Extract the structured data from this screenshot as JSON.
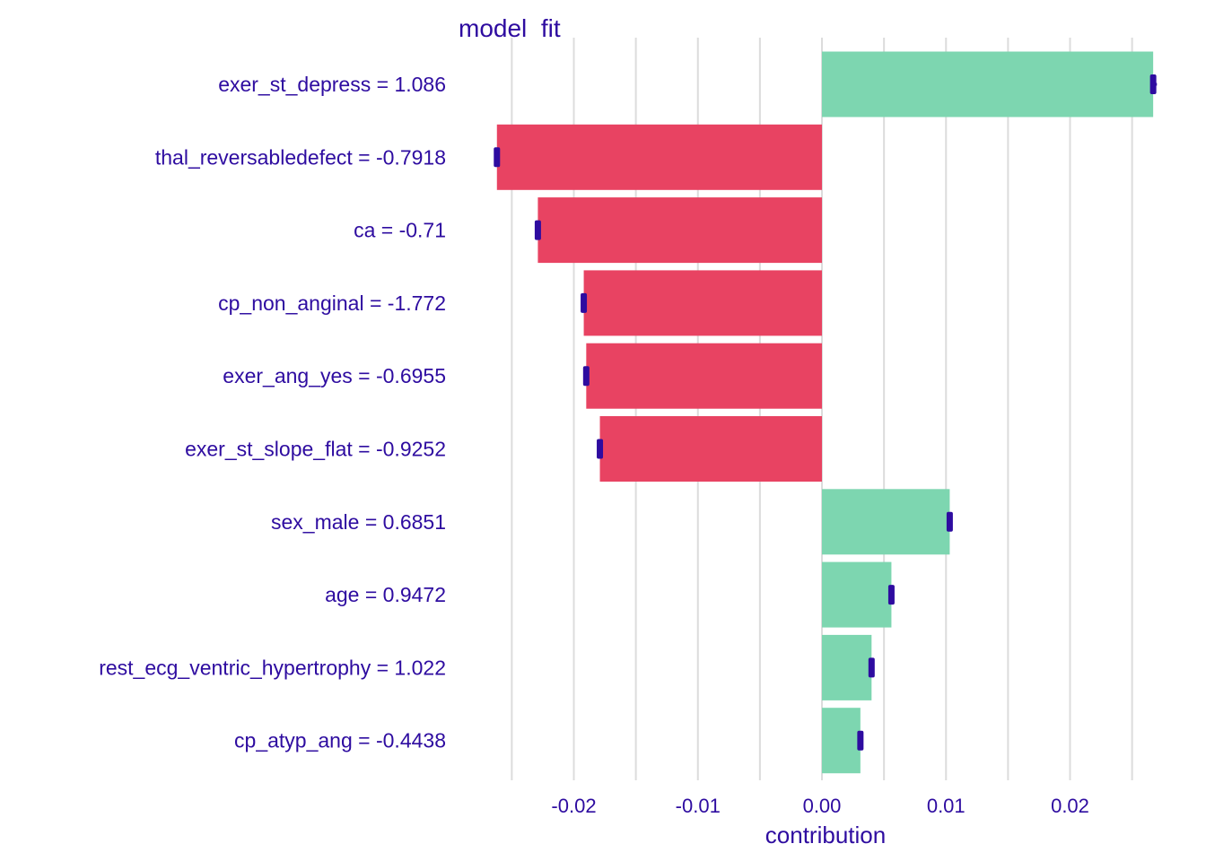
{
  "chart_data": {
    "type": "bar",
    "orientation": "horizontal",
    "title": "model  fit",
    "xlabel": "contribution",
    "ylabel": "",
    "xlim": [
      -0.0265,
      0.0265
    ],
    "xticks": [
      -0.02,
      -0.01,
      0.0,
      0.01,
      0.02
    ],
    "xtick_labels": [
      "-0.02",
      "-0.01",
      "0.00",
      "0.01",
      "0.02"
    ],
    "grid": "vertical",
    "legend": "none",
    "colors": {
      "positive": "#7dd6b0",
      "negative": "#e84362",
      "marker": "#2e0ca0",
      "text": "#2e0ca0",
      "grid": "#dcdcdc"
    },
    "categories": [
      "exer_st_depress = 1.086",
      "thal_reversabledefect = -0.7918",
      "ca = -0.71",
      "cp_non_anginal = -1.772",
      "exer_ang_yes = -0.6955",
      "exer_st_slope_flat = -0.9252",
      "sex_male = 0.6851",
      "age = 0.9472",
      "rest_ecg_ventric_hypertrophy = 1.022",
      "cp_atyp_ang = -0.4438"
    ],
    "values": [
      0.0267,
      -0.0262,
      -0.0229,
      -0.0192,
      -0.019,
      -0.0179,
      0.0103,
      0.0056,
      0.004,
      0.0031
    ],
    "intervals": [
      [
        0.0265,
        0.027
      ],
      [
        -0.0264,
        -0.0261
      ],
      [
        -0.0231,
        -0.0228
      ],
      [
        -0.0194,
        -0.0191
      ],
      [
        -0.0191,
        -0.0189
      ],
      [
        -0.018,
        -0.0179
      ],
      [
        0.0102,
        0.0104
      ],
      [
        0.0055,
        0.0057
      ],
      [
        0.0039,
        0.0041
      ],
      [
        0.003,
        0.0032
      ]
    ]
  }
}
